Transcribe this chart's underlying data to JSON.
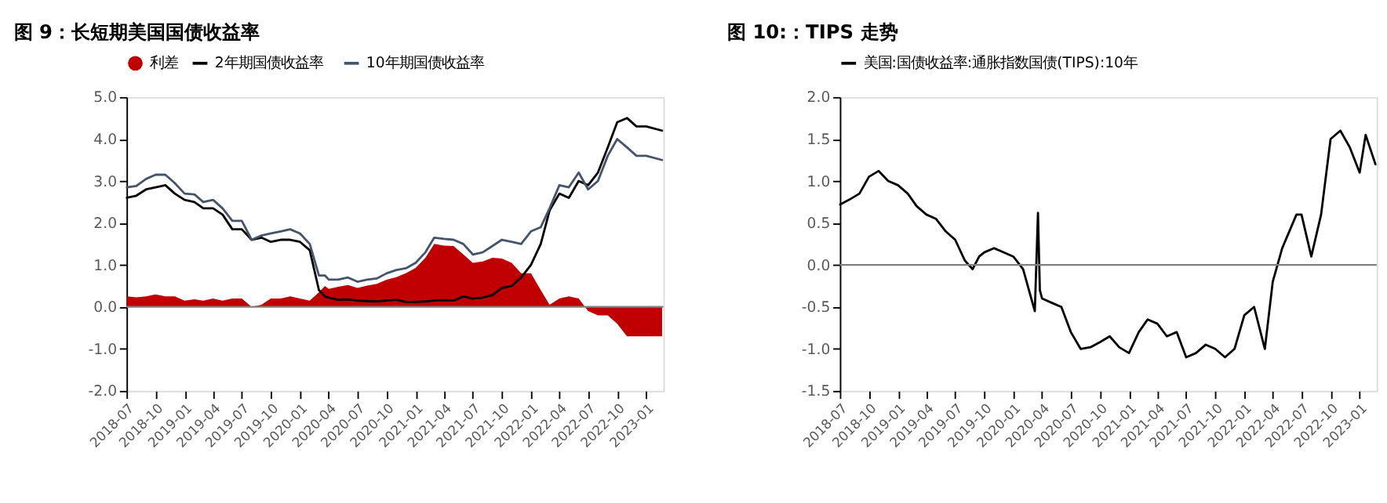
{
  "chart_data": [
    {
      "type": "line",
      "title": "图 9：长短期美国国债收益率",
      "legend": "top",
      "x": [
        "2018-07-02",
        "2018-08-01",
        "2018-09-01",
        "2018-10-01",
        "2018-11-01",
        "2018-12-01",
        "2019-01-01",
        "2019-02-01",
        "2019-03-01",
        "2019-04-01",
        "2019-05-01",
        "2019-06-01",
        "2019-07-01",
        "2019-08-01",
        "2019-09-01",
        "2019-10-01",
        "2019-11-01",
        "2019-12-01",
        "2020-01-01",
        "2020-02-01",
        "2020-03-01",
        "2020-03-20",
        "2020-04-01",
        "2020-05-01",
        "2020-06-01",
        "2020-07-01",
        "2020-08-01",
        "2020-09-01",
        "2020-10-01",
        "2020-11-01",
        "2020-12-01",
        "2021-01-01",
        "2021-02-01",
        "2021-03-01",
        "2021-04-01",
        "2021-05-01",
        "2021-06-01",
        "2021-07-01",
        "2021-08-01",
        "2021-09-01",
        "2021-10-01",
        "2021-11-01",
        "2021-12-01",
        "2022-01-01",
        "2022-02-01",
        "2022-03-01",
        "2022-04-01",
        "2022-05-01",
        "2022-06-01",
        "2022-07-01",
        "2022-08-01",
        "2022-09-01",
        "2022-10-01",
        "2022-11-01",
        "2022-12-01",
        "2023-01-01",
        "2023-02-20"
      ],
      "series": [
        {
          "name": "利差",
          "type": "area",
          "color": "#c00000",
          "values": [
            0.25,
            0.23,
            0.25,
            0.3,
            0.25,
            0.25,
            0.15,
            0.18,
            0.15,
            0.2,
            0.15,
            0.2,
            0.2,
            0.0,
            0.05,
            0.2,
            0.2,
            0.25,
            0.2,
            0.15,
            0.35,
            0.5,
            0.43,
            0.48,
            0.52,
            0.45,
            0.51,
            0.55,
            0.65,
            0.71,
            0.8,
            0.93,
            1.17,
            1.5,
            1.46,
            1.45,
            1.25,
            1.05,
            1.08,
            1.17,
            1.15,
            1.05,
            0.8,
            0.8,
            0.4,
            0.05,
            0.2,
            0.25,
            0.2,
            -0.1,
            -0.2,
            -0.2,
            -0.4,
            -0.7,
            -0.7,
            -0.7,
            -0.7
          ]
        },
        {
          "name": "2年期国债收益率",
          "type": "line",
          "color": "#000000",
          "values": [
            2.6,
            2.65,
            2.8,
            2.85,
            2.9,
            2.7,
            2.55,
            2.5,
            2.35,
            2.35,
            2.2,
            1.85,
            1.85,
            1.6,
            1.65,
            1.55,
            1.6,
            1.6,
            1.55,
            1.35,
            0.4,
            0.25,
            0.22,
            0.17,
            0.18,
            0.15,
            0.14,
            0.13,
            0.15,
            0.17,
            0.12,
            0.12,
            0.13,
            0.15,
            0.16,
            0.15,
            0.25,
            0.2,
            0.22,
            0.28,
            0.45,
            0.5,
            0.7,
            1.0,
            1.5,
            2.3,
            2.7,
            2.6,
            3.0,
            2.9,
            3.2,
            3.8,
            4.4,
            4.5,
            4.3,
            4.3,
            4.2
          ]
        },
        {
          "name": "10年期国债收益率",
          "type": "line",
          "color": "#44546a",
          "values": [
            2.85,
            2.88,
            3.05,
            3.15,
            3.15,
            2.95,
            2.7,
            2.68,
            2.5,
            2.55,
            2.35,
            2.05,
            2.05,
            1.6,
            1.7,
            1.75,
            1.8,
            1.85,
            1.75,
            1.5,
            0.75,
            0.75,
            0.65,
            0.65,
            0.7,
            0.6,
            0.65,
            0.68,
            0.8,
            0.88,
            0.92,
            1.05,
            1.3,
            1.65,
            1.62,
            1.6,
            1.5,
            1.25,
            1.3,
            1.45,
            1.6,
            1.55,
            1.5,
            1.8,
            1.9,
            2.35,
            2.9,
            2.85,
            3.2,
            2.8,
            3.0,
            3.6,
            4.0,
            3.8,
            3.6,
            3.6,
            3.5
          ]
        }
      ],
      "xlim": [
        "2018-07-01",
        "2023-02-24"
      ],
      "xticks": [
        "2018-07",
        "2018-10",
        "2019-01",
        "2019-04",
        "2019-07",
        "2019-10",
        "2020-01",
        "2020-04",
        "2020-07",
        "2020-10",
        "2021-01",
        "2021-04",
        "2021-07",
        "2021-10",
        "2022-01",
        "2022-04",
        "2022-07",
        "2022-10",
        "2023-01"
      ],
      "ylim": [
        -2,
        5
      ],
      "yticks": [
        {
          "value": -2,
          "label": "-2.0"
        },
        {
          "value": -1,
          "label": "-1.0"
        },
        {
          "value": 0,
          "label": "0.0"
        },
        {
          "value": 1,
          "label": "1.0"
        },
        {
          "value": 2,
          "label": "2.0"
        },
        {
          "value": 3,
          "label": "3.0"
        },
        {
          "value": 4,
          "label": "4.0"
        },
        {
          "value": 5,
          "label": "5.0"
        }
      ],
      "ref_lines": [
        {
          "axis": "y",
          "value": 0,
          "color": "#808080"
        }
      ]
    },
    {
      "type": "line",
      "title": "图 10:：TIPS 走势",
      "legend": "top",
      "x": [
        "2018-07-02",
        "2018-08-01",
        "2018-09-01",
        "2018-10-01",
        "2018-11-01",
        "2018-12-01",
        "2019-01-01",
        "2019-02-01",
        "2019-03-01",
        "2019-04-01",
        "2019-05-01",
        "2019-06-01",
        "2019-07-01",
        "2019-08-01",
        "2019-08-25",
        "2019-09-15",
        "2019-10-01",
        "2019-11-01",
        "2019-12-01",
        "2020-01-01",
        "2020-02-01",
        "2020-03-09",
        "2020-03-19",
        "2020-03-25",
        "2020-04-01",
        "2020-05-01",
        "2020-06-01",
        "2020-07-01",
        "2020-08-01",
        "2020-09-01",
        "2020-10-01",
        "2020-11-01",
        "2020-12-01",
        "2021-01-01",
        "2021-02-01",
        "2021-03-01",
        "2021-04-01",
        "2021-05-01",
        "2021-06-01",
        "2021-07-01",
        "2021-08-01",
        "2021-09-01",
        "2021-10-01",
        "2021-11-01",
        "2021-12-01",
        "2022-01-01",
        "2022-02-01",
        "2022-03-07",
        "2022-04-01",
        "2022-05-01",
        "2022-06-15",
        "2022-07-01",
        "2022-08-01",
        "2022-09-01",
        "2022-10-01",
        "2022-11-01",
        "2022-12-01",
        "2023-01-01",
        "2023-01-20",
        "2023-02-20"
      ],
      "series": [
        {
          "name": "美国:国债收益率:通胀指数国债(TIPS):10年",
          "color": "#000000",
          "values": [
            0.72,
            0.78,
            0.85,
            1.05,
            1.12,
            1.0,
            0.95,
            0.85,
            0.7,
            0.6,
            0.55,
            0.4,
            0.3,
            0.05,
            -0.05,
            0.1,
            0.15,
            0.2,
            0.15,
            0.1,
            -0.05,
            -0.55,
            0.62,
            -0.3,
            -0.4,
            -0.45,
            -0.5,
            -0.8,
            -1.0,
            -0.98,
            -0.92,
            -0.85,
            -0.98,
            -1.05,
            -0.8,
            -0.65,
            -0.7,
            -0.85,
            -0.8,
            -1.1,
            -1.05,
            -0.95,
            -1.0,
            -1.1,
            -1.0,
            -0.6,
            -0.5,
            -1.0,
            -0.2,
            0.2,
            0.6,
            0.6,
            0.1,
            0.6,
            1.5,
            1.6,
            1.4,
            1.1,
            1.55,
            1.2
          ]
        }
      ],
      "xlim": [
        "2018-07-01",
        "2023-02-24"
      ],
      "xticks": [
        "2018-07",
        "2018-10",
        "2019-01",
        "2019-04",
        "2019-07",
        "2019-10",
        "2020-01",
        "2020-04",
        "2020-07",
        "2020-10",
        "2021-01",
        "2021-04",
        "2021-07",
        "2021-10",
        "2022-01",
        "2022-04",
        "2022-07",
        "2022-10",
        "2023-01"
      ],
      "ylim": [
        -1.5,
        2
      ],
      "yticks": [
        {
          "value": -1.5,
          "label": "-1.5"
        },
        {
          "value": -1,
          "label": "-1.0"
        },
        {
          "value": -0.5,
          "label": "-0.5"
        },
        {
          "value": 0,
          "label": "0.0"
        },
        {
          "value": 0.5,
          "label": "0.5"
        },
        {
          "value": 1,
          "label": "1.0"
        },
        {
          "value": 1.5,
          "label": "1.5"
        },
        {
          "value": 2,
          "label": "2.0"
        }
      ],
      "ref_lines": [
        {
          "axis": "y",
          "value": 0,
          "color": "#808080"
        }
      ]
    }
  ]
}
